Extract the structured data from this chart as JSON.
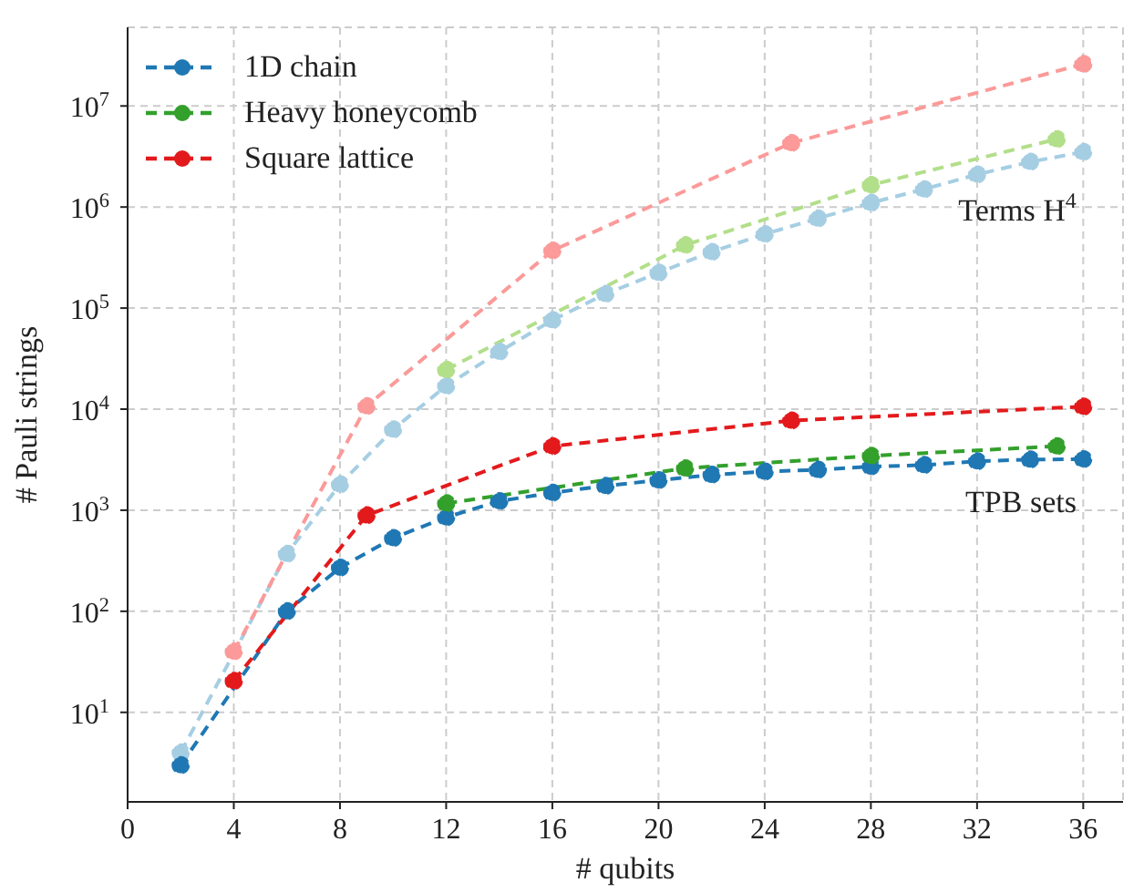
{
  "chart_data": {
    "type": "line",
    "xlabel": "# qubits",
    "ylabel": "# Pauli strings",
    "log": "y",
    "xlim": [
      0,
      37.5
    ],
    "xticks": [
      0,
      4,
      8,
      12,
      16,
      20,
      24,
      28,
      32,
      36
    ],
    "ylim": [
      1.3,
      60000000
    ],
    "yticks": [
      {
        "value": 10,
        "label": "10$^{1}$"
      },
      {
        "value": 100,
        "label": "10$^{2}$"
      },
      {
        "value": 1000,
        "label": "10$^{3}$"
      },
      {
        "value": 10000,
        "label": "10$^{4}$"
      },
      {
        "value": 100000,
        "label": "10$^{5}$"
      },
      {
        "value": 1000000,
        "label": "10$^{6}$"
      },
      {
        "value": 10000000,
        "label": "10$^{7}$"
      }
    ],
    "grid": true,
    "legend": "top left",
    "marker": "circle",
    "line_style": "dashed",
    "series": [
      {
        "color": "#a6cee3",
        "x": [
          2,
          4,
          6,
          8,
          10,
          12,
          14,
          16,
          18,
          20,
          22,
          24,
          26,
          28,
          30,
          32,
          34,
          36
        ],
        "values": [
          4,
          null,
          370,
          1800,
          6300,
          17000,
          37000,
          76000,
          138000,
          224000,
          360000,
          540000,
          770000,
          1100000,
          1500000,
          2100000,
          2800000,
          3500000
        ]
      },
      {
        "color": "#b2df8a",
        "x": [
          12,
          21,
          28,
          35
        ],
        "values": [
          24500,
          420000,
          1650000,
          4700000
        ]
      },
      {
        "color": "#fb9a99",
        "x": [
          4,
          9,
          16,
          25,
          36
        ],
        "values": [
          40,
          10700,
          370000,
          4300000,
          26000000
        ]
      },
      {
        "name": "1D chain",
        "color": "#1f78b4",
        "x": [
          2,
          4,
          6,
          8,
          10,
          12,
          14,
          16,
          18,
          20,
          22,
          24,
          26,
          28,
          30,
          32,
          34,
          36
        ],
        "values": [
          3,
          null,
          100,
          270,
          530,
          850,
          1230,
          1490,
          1740,
          1980,
          2240,
          2410,
          2510,
          2700,
          2800,
          3050,
          3170,
          3200
        ]
      },
      {
        "name": "Heavy honeycomb",
        "color": "#33a02c",
        "x": [
          12,
          21,
          28,
          35
        ],
        "values": [
          1170,
          2600,
          3450,
          4300
        ]
      },
      {
        "name": "Square lattice",
        "color": "#e31a1c",
        "x": [
          4,
          9,
          16,
          25,
          36
        ],
        "values": [
          20.5,
          890,
          4300,
          7700,
          10600
        ]
      }
    ],
    "annotations": [
      "Terms H$^{4}$",
      "TPB sets"
    ]
  }
}
